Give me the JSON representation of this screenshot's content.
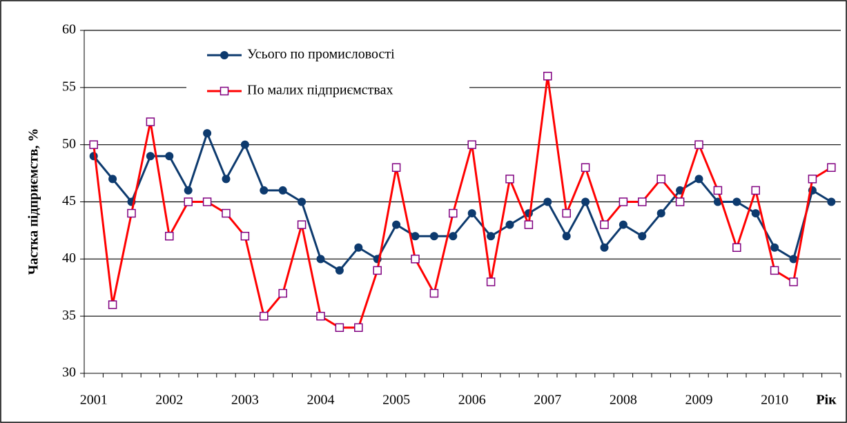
{
  "chart_data": {
    "type": "line",
    "y_label": "Частка  підприємств, %",
    "x_label": "Рік",
    "categories": [
      "2001",
      null,
      null,
      null,
      "2002",
      null,
      null,
      null,
      "2003",
      null,
      null,
      null,
      "2004",
      null,
      null,
      null,
      "2005",
      null,
      null,
      null,
      "2006",
      null,
      null,
      null,
      "2007",
      null,
      null,
      null,
      "2008",
      null,
      null,
      null,
      "2009",
      null,
      null,
      null,
      "2010",
      null,
      null,
      null
    ],
    "series": [
      {
        "name": "Усього по промисловості",
        "color": "#0d3a6e",
        "marker": "circle",
        "values": [
          49,
          47,
          45,
          49,
          49,
          46,
          51,
          47,
          50,
          46,
          46,
          45,
          40,
          39,
          41,
          40,
          43,
          42,
          42,
          42,
          44,
          42,
          43,
          44,
          45,
          42,
          45,
          41,
          43,
          42,
          44,
          46,
          47,
          45,
          45,
          44,
          41,
          40,
          46,
          45
        ]
      },
      {
        "name": "По малих підприємствах",
        "color": "#ff0000",
        "marker": "square",
        "values": [
          50,
          36,
          44,
          52,
          42,
          45,
          45,
          44,
          42,
          35,
          37,
          43,
          35,
          34,
          34,
          39,
          48,
          40,
          37,
          44,
          50,
          38,
          47,
          43,
          56,
          44,
          48,
          43,
          45,
          45,
          47,
          45,
          50,
          46,
          41,
          46,
          39,
          38,
          47,
          48
        ]
      }
    ],
    "ylim": [
      30,
      60
    ],
    "yticks": [
      30,
      35,
      40,
      45,
      50,
      55,
      60
    ],
    "grid": true
  }
}
